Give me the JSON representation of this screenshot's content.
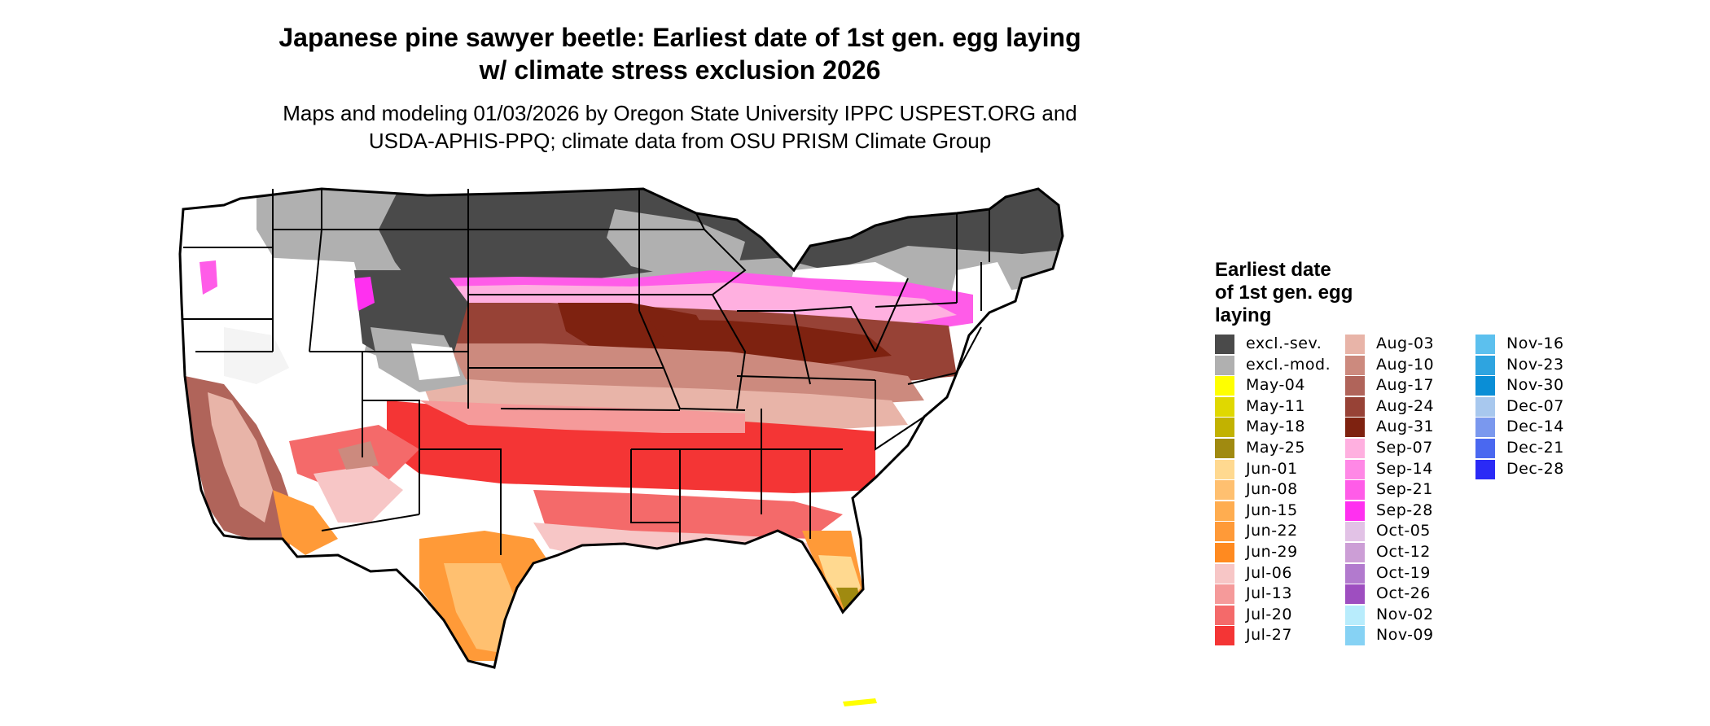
{
  "title_line1": "Japanese pine sawyer beetle: Earliest date of 1st gen. egg laying",
  "title_line2": "w/ climate stress exclusion 2026",
  "subtitle_line1": "Maps and modeling 01/03/2026 by Oregon State University IPPC USPEST.ORG and",
  "subtitle_line2": "USDA-APHIS-PPQ; climate data from OSU PRISM Climate Group",
  "legend": {
    "title_lines": [
      "Earliest date",
      "of 1st gen. egg",
      "laying"
    ],
    "columns": [
      [
        {
          "label": "excl.-sev.",
          "color": "#4a4a4a"
        },
        {
          "label": "excl.-mod.",
          "color": "#b0b0b0"
        },
        {
          "label": "May-04",
          "color": "#ffff00"
        },
        {
          "label": "May-11",
          "color": "#e0d800"
        },
        {
          "label": "May-18",
          "color": "#c2b200"
        },
        {
          "label": "May-25",
          "color": "#a08a10"
        },
        {
          "label": "Jun-01",
          "color": "#ffd990"
        },
        {
          "label": "Jun-08",
          "color": "#ffc070"
        },
        {
          "label": "Jun-15",
          "color": "#ffad50"
        },
        {
          "label": "Jun-22",
          "color": "#ff9a38"
        },
        {
          "label": "Jun-29",
          "color": "#ff8a20"
        },
        {
          "label": "Jul-06",
          "color": "#f7c6c6"
        },
        {
          "label": "Jul-13",
          "color": "#f59a9a"
        },
        {
          "label": "Jul-20",
          "color": "#f46a6a"
        },
        {
          "label": "Jul-27",
          "color": "#f43535"
        }
      ],
      [
        {
          "label": "Aug-03",
          "color": "#e8b4a8"
        },
        {
          "label": "Aug-10",
          "color": "#cc8a7e"
        },
        {
          "label": "Aug-17",
          "color": "#b0645a"
        },
        {
          "label": "Aug-24",
          "color": "#974236"
        },
        {
          "label": "Aug-31",
          "color": "#7e2210"
        },
        {
          "label": "Sep-07",
          "color": "#ffb0e0"
        },
        {
          "label": "Sep-14",
          "color": "#ff88e6"
        },
        {
          "label": "Sep-21",
          "color": "#ff5ce8"
        },
        {
          "label": "Sep-28",
          "color": "#ff30f0"
        },
        {
          "label": "Oct-05",
          "color": "#e2c2e6"
        },
        {
          "label": "Oct-12",
          "color": "#cc9ed6"
        },
        {
          "label": "Oct-19",
          "color": "#b27ace"
        },
        {
          "label": "Oct-26",
          "color": "#9e4ec0"
        },
        {
          "label": "Nov-02",
          "color": "#b8ecfc"
        },
        {
          "label": "Nov-09",
          "color": "#86d2f4"
        }
      ],
      [
        {
          "label": "Nov-16",
          "color": "#5cc0ee"
        },
        {
          "label": "Nov-23",
          "color": "#2ea4e0"
        },
        {
          "label": "Nov-30",
          "color": "#0a8ed6"
        },
        {
          "label": "Dec-07",
          "color": "#a8c8ee"
        },
        {
          "label": "Dec-14",
          "color": "#7a98ee"
        },
        {
          "label": "Dec-21",
          "color": "#4a68f0"
        },
        {
          "label": "Dec-28",
          "color": "#2a2af6"
        }
      ]
    ]
  }
}
